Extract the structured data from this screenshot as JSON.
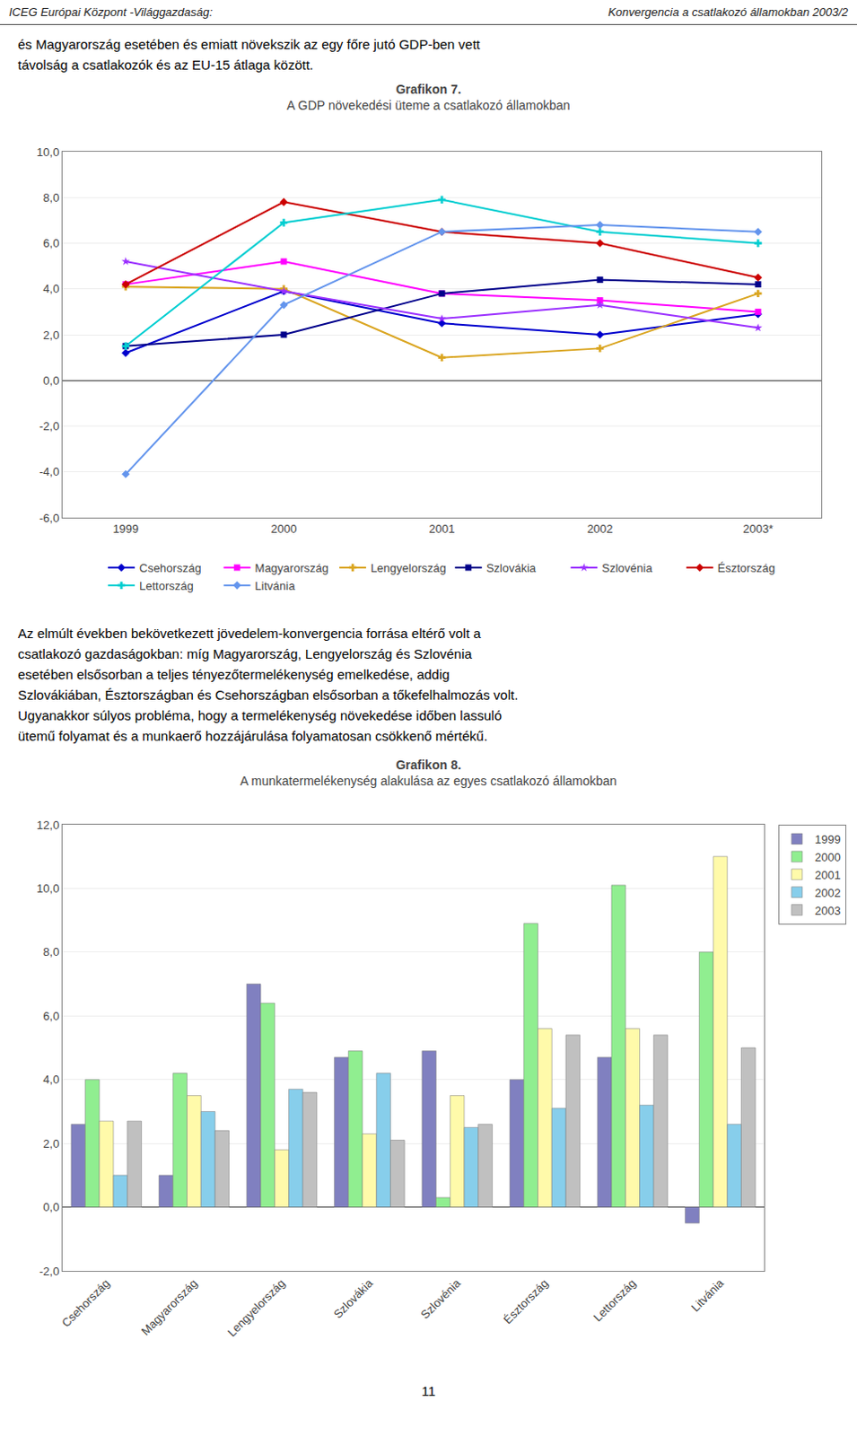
{
  "page": {
    "header_left": "ICEG Európai Központ -Világgazdaság:",
    "header_right": "Konvergencia a csatlakozó államokban 2003/2",
    "intro_text": "és Magyarország esetében és emiatt növekszik az egy főre jutó GDP-ben vett\ntávolság a csatlakozók és az EU-15 átlaga között.",
    "middle_text": "Az elmúlt években bekövetkezett jövedelem-konvergencia forrása eltérő volt a\ncsatlakozó gazdaságokban: míg Magyarország, Lengyelország és Szlovénia\nesetében elsősorban a teljes tényezőtermelékenység emelkedése, addig\nSzlovákiában, Észtországban és Csehországban elsősorban a tőkefelhalmozás volt.\nUgyanakkor súlyos probléma, hogy a termelékenység növekedése időben lassuló\nütemű folyamat és a munkaerő hozzájárulása folyamatosan csökkenő mértékű.",
    "footer_text": "11"
  },
  "chart_data": [
    {
      "type": "line",
      "title": "Grafikon 7.",
      "subtitle": "A GDP növekedési üteme a csatlakozó államokban",
      "x": [
        1999,
        2000,
        2001,
        2002,
        2003
      ],
      "xlim": [
        1998.6,
        2003.4
      ],
      "xticks": [
        1999,
        2000,
        2001,
        2002,
        {
          "value": 2003,
          "label": "2003*"
        }
      ],
      "ylim": [
        -6.0,
        10.0
      ],
      "yticks": [
        {
          "value": -6.0,
          "label": "-6,0"
        },
        {
          "value": -4.0,
          "label": "-4,0"
        },
        {
          "value": -2.0,
          "label": "-2,0"
        },
        {
          "value": 0.0,
          "label": "0,0"
        },
        {
          "value": 2.0,
          "label": "2,0"
        },
        {
          "value": 4.0,
          "label": "4,0"
        },
        {
          "value": 6.0,
          "label": "6,0"
        },
        {
          "value": 8.0,
          "label": "8,0"
        },
        {
          "value": 10.0,
          "label": "10,0"
        }
      ],
      "grid": true,
      "legend": "bottom",
      "series": [
        {
          "name": "Csehország",
          "color": "#0000CD",
          "marker": "diamond",
          "values": [
            1.2,
            3.9,
            2.5,
            2.0,
            2.9
          ]
        },
        {
          "name": "Magyarország",
          "color": "#FF00FF",
          "marker": "square",
          "values": [
            4.2,
            5.2,
            3.8,
            3.5,
            3.0
          ]
        },
        {
          "name": "Lengyelország",
          "color": "#DAA520",
          "marker": "cross",
          "values": [
            4.1,
            4.0,
            1.0,
            1.4,
            3.8
          ]
        },
        {
          "name": "Szlovákia",
          "color": "#00008B",
          "marker": "square",
          "values": [
            1.5,
            2.0,
            3.8,
            4.4,
            4.2
          ]
        },
        {
          "name": "Szlovénia",
          "color": "#9B30FF",
          "marker": "star",
          "values": [
            5.2,
            3.9,
            2.7,
            3.3,
            2.3
          ]
        },
        {
          "name": "Észtország",
          "color": "#CC0000",
          "marker": "diamond",
          "values": [
            4.2,
            7.8,
            6.5,
            6.0,
            4.5
          ]
        },
        {
          "name": "Lettország",
          "color": "#00CED1",
          "marker": "cross",
          "values": [
            1.5,
            6.9,
            7.9,
            6.5,
            6.0
          ]
        },
        {
          "name": "Litvánia",
          "color": "#6495ED",
          "marker": "diamond",
          "values": [
            -4.1,
            3.3,
            6.5,
            6.8,
            6.5
          ]
        }
      ]
    },
    {
      "type": "bar",
      "title": "Grafikon 8.",
      "subtitle": "A munkatermelékenység alakulása az egyes csatlakozó államokban",
      "categories": [
        "Csehország",
        "Magyarország",
        "Lengyelország",
        "Szlovákia",
        "Szlovénia",
        "Észtország",
        "Lettország",
        "Litvánia"
      ],
      "ylim": [
        -2.0,
        12.0
      ],
      "yticks": [
        {
          "value": -2.0,
          "label": "-2,0"
        },
        {
          "value": 0.0,
          "label": "0,0"
        },
        {
          "value": 2.0,
          "label": "2,0"
        },
        {
          "value": 4.0,
          "label": "4,0"
        },
        {
          "value": 6.0,
          "label": "6,0"
        },
        {
          "value": 8.0,
          "label": "8,0"
        },
        {
          "value": 10.0,
          "label": "10,0"
        },
        {
          "value": 12.0,
          "label": "12,0"
        }
      ],
      "grid": true,
      "legend": "right",
      "series": [
        {
          "name": "1999",
          "color": "#8080C0",
          "values": [
            2.6,
            1.0,
            7.0,
            4.7,
            4.9,
            4.0,
            4.7,
            -0.5
          ]
        },
        {
          "name": "2000",
          "color": "#90EE90",
          "values": [
            4.0,
            4.2,
            6.4,
            4.9,
            0.3,
            8.9,
            10.1,
            8.0
          ]
        },
        {
          "name": "2001",
          "color": "#FFFAAA",
          "values": [
            2.7,
            3.5,
            1.8,
            2.3,
            3.5,
            5.6,
            5.6,
            11.0
          ]
        },
        {
          "name": "2002",
          "color": "#87CEEB",
          "values": [
            1.0,
            3.0,
            3.7,
            4.2,
            2.5,
            3.1,
            3.2,
            2.6
          ]
        },
        {
          "name": "2003",
          "color": "#C0C0C0",
          "values": [
            2.7,
            2.4,
            3.6,
            2.1,
            2.6,
            5.4,
            5.4,
            5.0
          ]
        }
      ]
    }
  ]
}
